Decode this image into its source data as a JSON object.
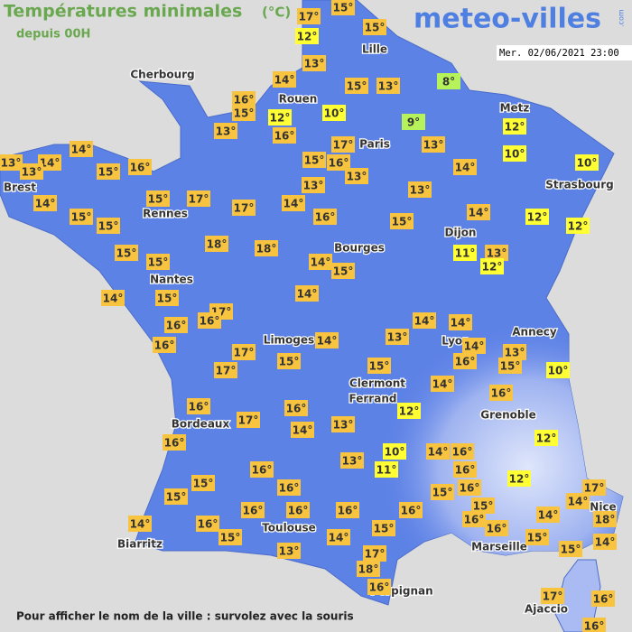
{
  "header": {
    "title": "Températures minimales",
    "unit": "(°C)",
    "subtitle": "depuis 00H",
    "logo": "meteo-villes",
    "logo_suffix": ".com",
    "date": "Mer. 02/06/2021 23:00"
  },
  "footer": "Pour afficher le nom de la ville : survolez avec la souris",
  "cities": [
    "Lille",
    "Cherbourg",
    "Rouen",
    "Metz",
    "Paris",
    "Brest",
    "Strasbourg",
    "Rennes",
    "Dijon",
    "Bourges",
    "Nantes",
    "Annecy",
    "Limoges",
    "Lyon",
    "Clermont",
    "Ferrand",
    "Grenoble",
    "Bordeaux",
    "Toulouse",
    "Biarritz",
    "Marseille",
    "Nice",
    "Perpignan",
    "Ajaccio"
  ],
  "temperatures": [
    "17°",
    "15°",
    "12°",
    "15°",
    "13°",
    "14°",
    "15°",
    "13°",
    "8°",
    "16°",
    "15°",
    "12°",
    "10°",
    "9°",
    "12°",
    "13°",
    "16°",
    "17°",
    "13°",
    "10°",
    "14°",
    "13°",
    "14°",
    "13°",
    "15°",
    "16°",
    "15°",
    "16°",
    "13°",
    "14°",
    "10°",
    "13°",
    "13°",
    "15°",
    "17°",
    "14°",
    "15°",
    "15°",
    "17°",
    "14°",
    "16°",
    "15°",
    "14°",
    "12°",
    "12°",
    "18°",
    "18°",
    "15°",
    "15°",
    "11°",
    "13°",
    "12°",
    "14°",
    "15°",
    "14°",
    "15°",
    "14°",
    "17°",
    "16°",
    "16°",
    "14°",
    "14°",
    "16°",
    "13°",
    "14°",
    "14°",
    "17°",
    "15°",
    "13°",
    "15°",
    "17°",
    "15°",
    "16°",
    "10°",
    "14°",
    "16°",
    "16°",
    "12°",
    "16°",
    "17°",
    "13°",
    "14°",
    "16°",
    "10°",
    "14°",
    "16°",
    "12°",
    "13°",
    "11°",
    "16°",
    "16°",
    "12°",
    "15°",
    "16°",
    "15°",
    "16°",
    "17°",
    "14°",
    "15°",
    "16°",
    "16°",
    "16°",
    "16°",
    "15°",
    "18°",
    "16°",
    "16°",
    "14°",
    "14°",
    "16°",
    "15°",
    "15°",
    "14°",
    "15°",
    "14°",
    "13°",
    "15°",
    "17°",
    "18°",
    "16°",
    "17°",
    "16°",
    "16°"
  ]
}
